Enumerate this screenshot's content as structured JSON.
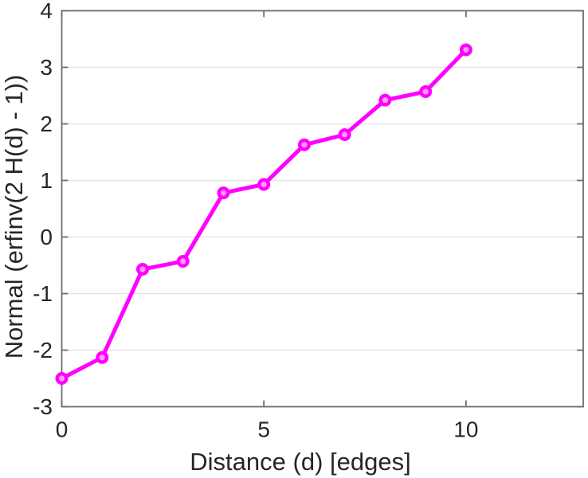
{
  "chart_data": {
    "type": "line",
    "title": "",
    "xlabel": "Distance (d) [edges]",
    "ylabel": "Normal (erfinv(2 H(d) - 1))",
    "x": [
      0,
      1,
      2,
      3,
      4,
      5,
      6,
      7,
      8,
      9,
      10
    ],
    "y": [
      -2.5,
      -2.13,
      -0.57,
      -0.43,
      0.78,
      0.93,
      1.63,
      1.81,
      2.42,
      2.57,
      3.31
    ],
    "xlim": [
      0,
      12.9
    ],
    "ylim": [
      -3,
      4
    ],
    "xticks": [
      0,
      5,
      10
    ],
    "xtick_labels": [
      "0",
      "5",
      "10"
    ],
    "yticks": [
      -3,
      -2,
      -1,
      0,
      1,
      2,
      3,
      4
    ],
    "ytick_labels": [
      "-3",
      "-2",
      "-1",
      "0",
      "1",
      "2",
      "3",
      "4"
    ],
    "grid": "horizontal-only",
    "legend": "none",
    "marker": "circle",
    "colors": {
      "line": "#ff00ff",
      "marker_fill": "#ff9cfc",
      "axis": "#6e6e6e",
      "grid": "#e6e6e6",
      "text": "#262626",
      "background": "#ffffff"
    }
  }
}
